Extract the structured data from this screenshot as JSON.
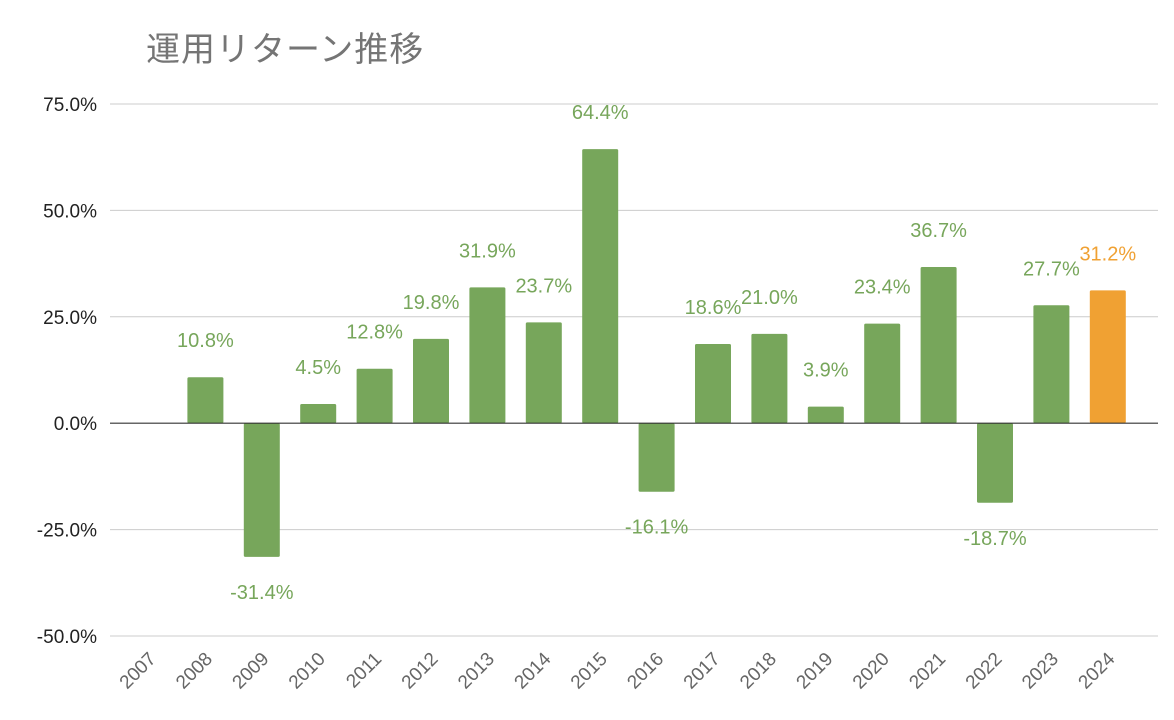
{
  "chart_data": {
    "type": "bar",
    "title": "運用リターン推移",
    "xlabel": "",
    "ylabel": "",
    "categories": [
      "2007",
      "2008",
      "2009",
      "2010",
      "2011",
      "2012",
      "2013",
      "2014",
      "2015",
      "2016",
      "2017",
      "2018",
      "2019",
      "2020",
      "2021",
      "2022",
      "2023",
      "2024"
    ],
    "values": [
      null,
      10.8,
      -31.4,
      4.5,
      12.8,
      19.8,
      31.9,
      23.7,
      64.4,
      -16.1,
      18.6,
      21.0,
      3.9,
      23.4,
      36.7,
      -18.7,
      27.7,
      31.2
    ],
    "data_labels": [
      "",
      "10.8%",
      "-31.4%",
      "4.5%",
      "12.8%",
      "19.8%",
      "31.9%",
      "23.7%",
      "64.4%",
      "-16.1%",
      "18.6%",
      "21.0%",
      "3.9%",
      "23.4%",
      "36.7%",
      "-18.7%",
      "27.7%",
      "31.2%"
    ],
    "yticks": [
      75,
      50,
      25,
      0,
      -25,
      -50
    ],
    "ytick_labels": [
      "75.0%",
      "50.0%",
      "25.0%",
      "0.0%",
      "-25.0%",
      "-50.0%"
    ],
    "ylim": [
      -50,
      75
    ],
    "grid": true,
    "legend": "none",
    "colors": {
      "default": "#77a65b",
      "highlight": "#f0a133",
      "highlight_category": "2024",
      "grid": "#cccccc",
      "zero_line": "#333333"
    }
  }
}
